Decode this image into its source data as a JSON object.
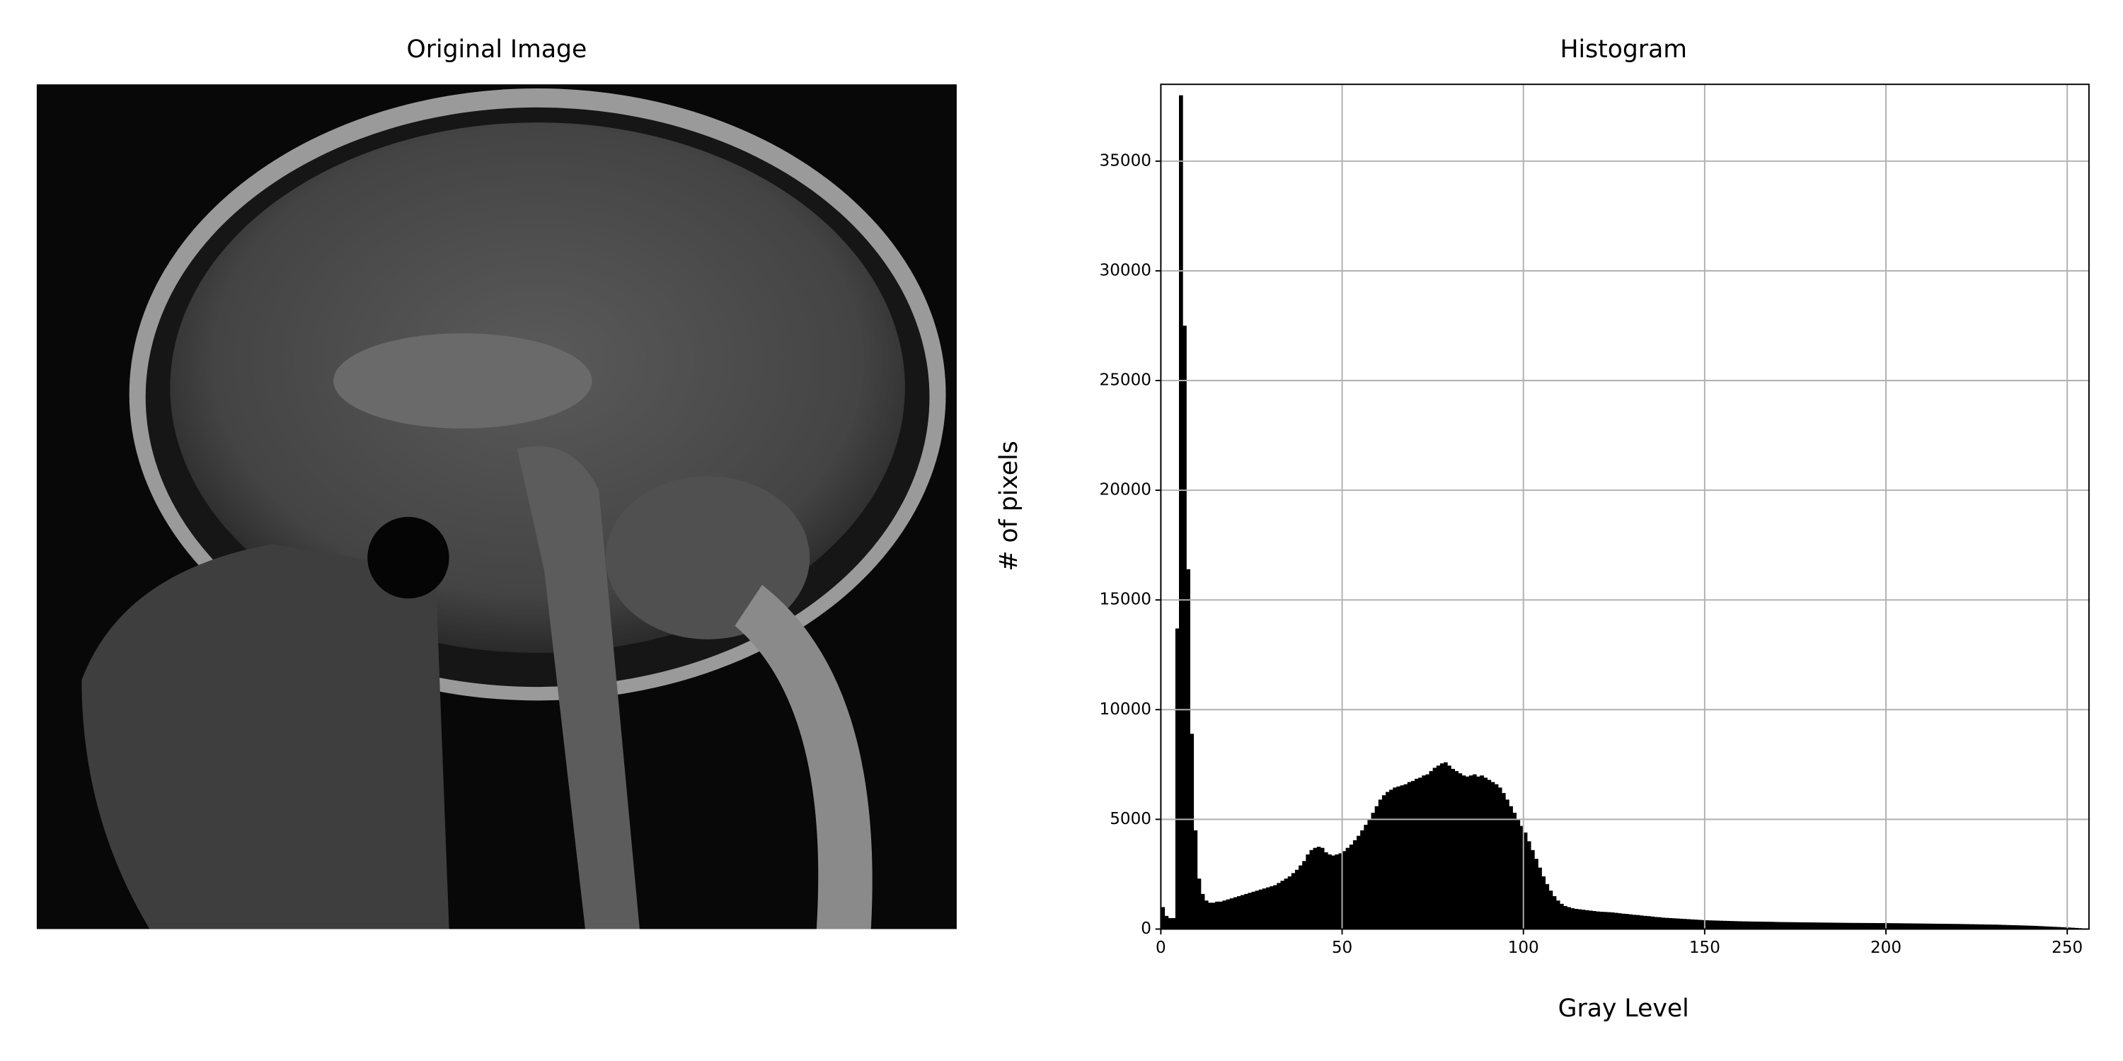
{
  "image_panel": {
    "title": "Original Image"
  },
  "chart_data": {
    "type": "histogram",
    "title": "Histogram",
    "x_label": "Gray Level",
    "y_label": "# of pixels",
    "color": "#000000",
    "grid": true,
    "bins": [
      0,
      1,
      2,
      3,
      4,
      5,
      6,
      7,
      8,
      9,
      10,
      11,
      12,
      13,
      14,
      15,
      16,
      17,
      18,
      19,
      20,
      21,
      22,
      23,
      24,
      25,
      26,
      27,
      28,
      29,
      30,
      31,
      32,
      33,
      34,
      35,
      36,
      37,
      38,
      39,
      40,
      41,
      42,
      43,
      44,
      45,
      46,
      47,
      48,
      49,
      50,
      51,
      52,
      53,
      54,
      55,
      56,
      57,
      58,
      59,
      60,
      61,
      62,
      63,
      64,
      65,
      66,
      67,
      68,
      69,
      70,
      71,
      72,
      73,
      74,
      75,
      76,
      77,
      78,
      79,
      80,
      81,
      82,
      83,
      84,
      85,
      86,
      87,
      88,
      89,
      90,
      91,
      92,
      93,
      94,
      95,
      96,
      97,
      98,
      99,
      100,
      101,
      102,
      103,
      104,
      105,
      106,
      107,
      108,
      109,
      110,
      111,
      112,
      113,
      114,
      115,
      116,
      117,
      118,
      119,
      120,
      121,
      122,
      123,
      124,
      125,
      126,
      127,
      128,
      129,
      130,
      131,
      132,
      133,
      134,
      135,
      136,
      137,
      138,
      139,
      140,
      141,
      142,
      143,
      144,
      145,
      146,
      147,
      148,
      149,
      150,
      151,
      152,
      153,
      154,
      155,
      156,
      157,
      158,
      159,
      160,
      161,
      162,
      163,
      164,
      165,
      166,
      167,
      168,
      169,
      170,
      171,
      172,
      173,
      174,
      175,
      176,
      177,
      178,
      179,
      180,
      181,
      182,
      183,
      184,
      185,
      186,
      187,
      188,
      189,
      190,
      191,
      192,
      193,
      194,
      195,
      196,
      197,
      198,
      199,
      200,
      201,
      202,
      203,
      204,
      205,
      206,
      207,
      208,
      209,
      210,
      211,
      212,
      213,
      214,
      215,
      216,
      217,
      218,
      219,
      220,
      221,
      222,
      223,
      224,
      225,
      226,
      227,
      228,
      229,
      230,
      231,
      232,
      233,
      234,
      235,
      236,
      237,
      238,
      239,
      240,
      241,
      242,
      243,
      244,
      245,
      246,
      247,
      248,
      249,
      250,
      251,
      252,
      253,
      254,
      255,
      256
    ],
    "values": [
      1000,
      600,
      500,
      500,
      13700,
      38000,
      27500,
      16400,
      8900,
      4500,
      2300,
      1600,
      1300,
      1200,
      1200,
      1250,
      1250,
      1300,
      1350,
      1400,
      1450,
      1500,
      1550,
      1600,
      1650,
      1700,
      1750,
      1800,
      1850,
      1900,
      1950,
      2000,
      2100,
      2200,
      2300,
      2400,
      2550,
      2700,
      2900,
      3100,
      3400,
      3600,
      3700,
      3750,
      3700,
      3500,
      3400,
      3350,
      3400,
      3450,
      3550,
      3700,
      3850,
      4050,
      4250,
      4500,
      4750,
      5000,
      5300,
      5600,
      5900,
      6100,
      6250,
      6350,
      6450,
      6500,
      6550,
      6600,
      6700,
      6750,
      6850,
      6900,
      7000,
      7050,
      7200,
      7350,
      7450,
      7550,
      7600,
      7450,
      7300,
      7200,
      7100,
      7000,
      6950,
      7000,
      7050,
      6950,
      7000,
      6900,
      6800,
      6700,
      6600,
      6450,
      6200,
      5900,
      5600,
      5300,
      5000,
      4700,
      4400,
      4000,
      3600,
      3200,
      2800,
      2400,
      2050,
      1750,
      1500,
      1300,
      1150,
      1050,
      1000,
      950,
      920,
      900,
      880,
      860,
      840,
      820,
      800,
      790,
      780,
      770,
      760,
      740,
      720,
      700,
      690,
      670,
      650,
      640,
      620,
      600,
      590,
      570,
      550,
      540,
      520,
      510,
      500,
      490,
      480,
      470,
      460,
      450,
      440,
      430,
      420,
      410,
      400,
      395,
      390,
      385,
      380,
      375,
      370,
      365,
      360,
      355,
      350,
      348,
      345,
      342,
      340,
      338,
      335,
      332,
      330,
      325,
      320,
      318,
      316,
      314,
      312,
      310,
      308,
      306,
      304,
      302,
      300,
      298,
      296,
      294,
      292,
      290,
      288,
      286,
      284,
      282,
      280,
      279,
      278,
      277,
      276,
      275,
      274,
      273,
      272,
      271,
      270,
      268,
      266,
      264,
      262,
      260,
      258,
      256,
      254,
      252,
      250,
      248,
      246,
      244,
      242,
      240,
      238,
      236,
      234,
      232,
      230,
      227,
      224,
      221,
      218,
      215,
      212,
      209,
      206,
      203,
      200,
      195,
      190,
      185,
      180,
      175,
      170,
      165,
      160,
      155,
      150,
      142,
      134,
      126,
      118,
      110,
      102,
      94,
      86,
      78,
      70,
      60,
      50,
      40,
      30,
      20
    ],
    "xlim": [
      0,
      256
    ],
    "ylim": [
      0,
      38500
    ],
    "xticks": [
      0,
      50,
      100,
      150,
      200,
      250
    ],
    "yticks": [
      0,
      5000,
      10000,
      15000,
      20000,
      25000,
      30000,
      35000
    ]
  }
}
